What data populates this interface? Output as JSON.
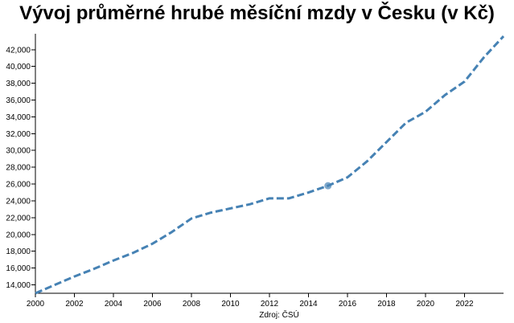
{
  "chart_data": {
    "type": "line",
    "title": "Vývoj průměrné hrubé měsíční mzdy v Česku (v Kč)",
    "xlabel": "Zdroj: ČSÚ",
    "ylabel": "",
    "xlim": [
      2000,
      2024
    ],
    "ylim": [
      13000,
      43700
    ],
    "x_ticks": [
      2000,
      2002,
      2004,
      2006,
      2008,
      2010,
      2012,
      2014,
      2016,
      2018,
      2020,
      2022
    ],
    "x_tick_labels": [
      "2000",
      "2002",
      "2004",
      "2006",
      "2008",
      "2010",
      "2012",
      "2014",
      "2016",
      "2018",
      "2020",
      "2022"
    ],
    "y_ticks": [
      14000,
      16000,
      18000,
      20000,
      22000,
      24000,
      26000,
      28000,
      30000,
      32000,
      34000,
      36000,
      38000,
      40000,
      42000
    ],
    "y_tick_labels": [
      "14,000",
      "16,000",
      "18,000",
      "20,000",
      "22,000",
      "24,000",
      "26,000",
      "28,000",
      "30,000",
      "32,000",
      "34,000",
      "36,000",
      "38,000",
      "40,000",
      "42,000"
    ],
    "grid": false,
    "line_style": "dashed",
    "series": [
      {
        "color": "#4682b4",
        "x": [
          2000,
          2001,
          2002,
          2003,
          2004,
          2005,
          2006,
          2007,
          2008,
          2009,
          2010,
          2011,
          2012,
          2013,
          2014,
          2015,
          2016,
          2017,
          2018,
          2019,
          2020,
          2021,
          2022,
          2023,
          2024
        ],
        "values": [
          13000,
          14000,
          15000,
          15900,
          16900,
          17800,
          18900,
          20300,
          21900,
          22600,
          23100,
          23600,
          24300,
          24300,
          25000,
          25800,
          26800,
          28700,
          31000,
          33300,
          34600,
          36600,
          38200,
          41100,
          43600
        ]
      }
    ],
    "highlighted_point": {
      "x": 2015,
      "y": 25800,
      "color": "#4682b4"
    }
  }
}
